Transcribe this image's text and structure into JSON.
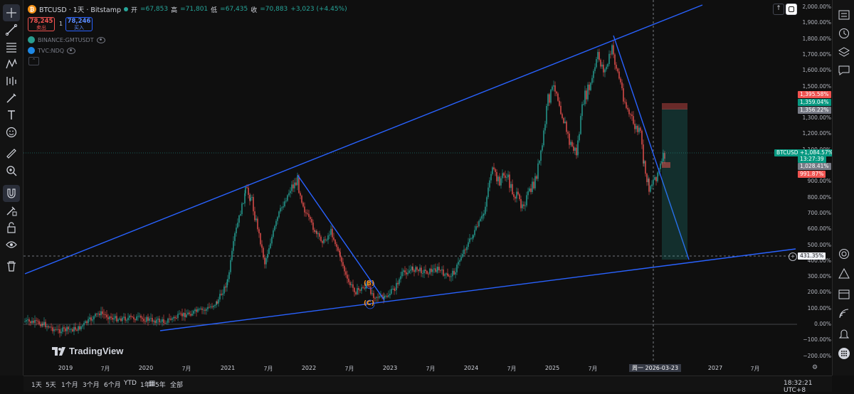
{
  "legend": {
    "symbol": "BTCUSD · 1天 · Bitstamp",
    "open_label": "开",
    "open": "=67,853",
    "high_label": "高",
    "high": "=71,801",
    "low_label": "低",
    "low": "=67,435",
    "close_label": "收",
    "close": "=70,883",
    "change": "+3,023 (+4.45%)",
    "sell_price": "78,245",
    "sell_label": "卖出",
    "spread": "1",
    "buy_price": "78,246",
    "buy_label": "买入",
    "indicator1": "BINANCE:GMTUSDT",
    "indicator2": "TVC:NDQ"
  },
  "price_axis": [
    "2,000.00%",
    "1,900.00%",
    "1,800.00%",
    "1,700.00%",
    "1,600.00%",
    "1,500.00%",
    "1,400.00%",
    "1,300.00%",
    "1,200.00%",
    "1,100.00%",
    "1,000.00%",
    "900.00%",
    "800.00%",
    "700.00%",
    "600.00%",
    "500.00%",
    "400.00%",
    "300.00%",
    "200.00%",
    "100.00%",
    "0.00%",
    "−100.00%",
    "−200.00%"
  ],
  "price_tags": {
    "red_top": "1,395.58%",
    "green_target": "1,359.04%",
    "grey_entry": "1,356.22%",
    "symbol_tag": "BTCUSD",
    "current": "+1,084.57%",
    "countdown": "13:27:39",
    "stop": "1,028.41%",
    "red_low": "991.87%",
    "crosshair": "431.35%"
  },
  "time_axis": [
    {
      "label": "2019",
      "year": true
    },
    {
      "label": "7月",
      "year": false
    },
    {
      "label": "2020",
      "year": true
    },
    {
      "label": "7月",
      "year": false
    },
    {
      "label": "2021",
      "year": true
    },
    {
      "label": "7月",
      "year": false
    },
    {
      "label": "2022",
      "year": true
    },
    {
      "label": "7月",
      "year": false
    },
    {
      "label": "2023",
      "year": true
    },
    {
      "label": "7月",
      "year": false
    },
    {
      "label": "2024",
      "year": true
    },
    {
      "label": "7月",
      "year": false
    },
    {
      "label": "2025",
      "year": true
    },
    {
      "label": "7月",
      "year": false
    },
    {
      "label": "3",
      "year": false
    },
    {
      "label": "2027",
      "year": true
    },
    {
      "label": "7月",
      "year": false
    }
  ],
  "crosshair_date": "周一 2026-03-23",
  "wave_labels": {
    "b": "(B)",
    "c": "(C)"
  },
  "ranges": [
    "1天",
    "5天",
    "1个月",
    "3个月",
    "6个月",
    "YTD",
    "1年",
    "5年",
    "全部"
  ],
  "clock": "18:32:21 UTC+8",
  "logo": "TradingView",
  "colors": {
    "up": "#26a69a",
    "down": "#ef5350",
    "line": "#2962ff",
    "bg": "#0f0f0f"
  }
}
